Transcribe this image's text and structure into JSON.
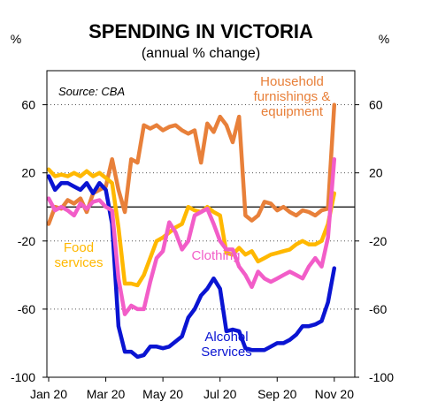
{
  "chart_data": {
    "type": "line",
    "title": "SPENDING IN VICTORIA",
    "subtitle": "(annual % change)",
    "unit_left": "%",
    "unit_right": "%",
    "source": "Source: CBA",
    "ylim": [
      -100,
      80
    ],
    "yticks": [
      60,
      20,
      -20,
      -60,
      -100
    ],
    "xlim": [
      0,
      46
    ],
    "x_tick_labels": [
      {
        "x": 0,
        "label": "Jan 20"
      },
      {
        "x": 9,
        "label": "Mar 20"
      },
      {
        "x": 18,
        "label": "May 20"
      },
      {
        "x": 27,
        "label": "Jul 20"
      },
      {
        "x": 36,
        "label": "Sep 20"
      },
      {
        "x": 45,
        "label": "Nov 20"
      }
    ],
    "zero_line": true,
    "grid": "horizontal dotted",
    "colors": {
      "household": "#E8803A",
      "alcohol": "#0A14D2",
      "food": "#FFB800",
      "clothing": "#F25DC8",
      "axis": "#000000",
      "grid": "#555555"
    },
    "series": [
      {
        "name": "Household furnishings & equipment",
        "label_lines": [
          "Household",
          "furnishings &",
          "equipment"
        ],
        "color_key": "household",
        "values": [
          -10,
          0,
          -1,
          4,
          2,
          5,
          -3,
          8,
          10,
          12,
          28,
          10,
          -3,
          28,
          26,
          48,
          46,
          48,
          45,
          47,
          48,
          45,
          43,
          45,
          26,
          49,
          44,
          53,
          48,
          38,
          53,
          -5,
          -8,
          -5,
          3,
          2,
          -2,
          0,
          -3,
          -5,
          -2,
          -3,
          -5,
          -2,
          -1,
          60
        ]
      },
      {
        "name": "Alcohol Services",
        "label_lines": [
          "Alcohol",
          "Services"
        ],
        "color_key": "alcohol",
        "values": [
          18,
          10,
          14,
          14,
          12,
          10,
          14,
          8,
          14,
          10,
          -10,
          -70,
          -85,
          -85,
          -88,
          -87,
          -82,
          -82,
          -83,
          -82,
          -79,
          -76,
          -65,
          -60,
          -52,
          -48,
          -42,
          -48,
          -73,
          -72,
          -73,
          -83,
          -84,
          -84,
          -84,
          -82,
          -80,
          -80,
          -78,
          -75,
          -70,
          -70,
          -69,
          -67,
          -56,
          -36
        ]
      },
      {
        "name": "Food services",
        "label_lines": [
          "Food",
          "services"
        ],
        "color_key": "food",
        "values": [
          22,
          18,
          19,
          18,
          20,
          18,
          21,
          18,
          20,
          17,
          14,
          -12,
          -45,
          -45,
          -46,
          -40,
          -30,
          -20,
          -18,
          -15,
          -12,
          -10,
          0,
          -2,
          -3,
          0,
          -3,
          -5,
          -27,
          -28,
          -24,
          -28,
          -26,
          -32,
          -30,
          -28,
          -27,
          -26,
          -25,
          -22,
          -20,
          -22,
          -22,
          -20,
          -10,
          8
        ]
      },
      {
        "name": "Clothing",
        "label_lines": [
          "Clothing"
        ],
        "color_key": "clothing",
        "values": [
          5,
          -2,
          0,
          -2,
          -5,
          2,
          -1,
          3,
          4,
          0,
          -2,
          -42,
          -63,
          -58,
          -60,
          -60,
          -44,
          -30,
          -26,
          -9,
          -15,
          -25,
          -20,
          -5,
          -3,
          -1,
          -10,
          -20,
          -25,
          -25,
          -35,
          -40,
          -47,
          -38,
          -42,
          -44,
          -42,
          -40,
          -38,
          -40,
          -42,
          -35,
          -30,
          -35,
          -18,
          28
        ]
      }
    ]
  }
}
